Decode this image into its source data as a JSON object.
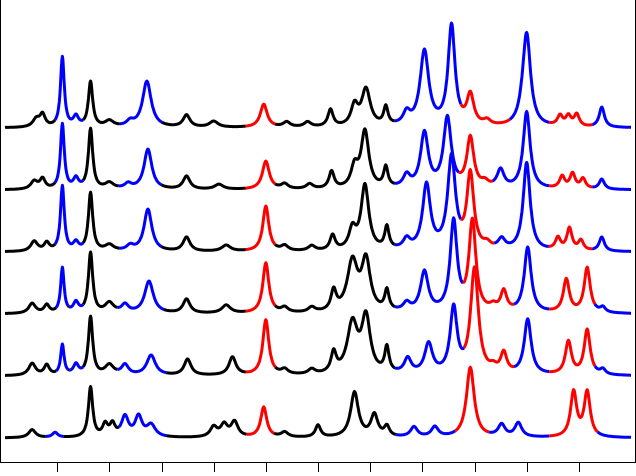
{
  "chart_data": {
    "type": "line",
    "title": "",
    "xlabel": "",
    "ylabel": "",
    "xlim": [
      0,
      600
    ],
    "ylim": [
      0,
      6
    ],
    "grid": false,
    "legend": "none",
    "x_ticks": [
      50,
      100,
      150,
      200,
      250,
      300,
      350,
      400,
      450,
      500,
      550
    ],
    "x_minor_ticks": [],
    "tick_labels_visible": false,
    "colors": {
      "black": "#000000",
      "blue": "#0000ff",
      "red": "#ff0000"
    },
    "segments": [
      {
        "color": "red",
        "x0": 231,
        "x1": 262
      },
      {
        "color": "blue",
        "x0": 374,
        "x1": 432
      },
      {
        "color": "red",
        "x0": 432,
        "x1": 486
      },
      {
        "color": "blue",
        "x0": 486,
        "x1": 522
      },
      {
        "color": "red",
        "x0": 522,
        "x1": 564
      },
      {
        "color": "blue",
        "x0": 564,
        "x1": 600
      }
    ],
    "series": [
      {
        "offset": 5,
        "peaks": [
          [
            30,
            0.08,
            4,
            "black"
          ],
          [
            36,
            0.12,
            3,
            "black"
          ],
          [
            55,
            0.7,
            2.2,
            "blue"
          ],
          [
            68,
            0.1,
            3,
            "blue"
          ],
          [
            82,
            0.45,
            2.5,
            "black"
          ],
          [
            100,
            0.06,
            5,
            "black"
          ],
          [
            120,
            0.05,
            4,
            "blue"
          ],
          [
            136,
            0.46,
            5,
            "blue"
          ],
          [
            174,
            0.12,
            4,
            "black"
          ],
          [
            200,
            0.06,
            5,
            "black"
          ],
          [
            248,
            0.23,
            4,
            "red"
          ],
          [
            270,
            0.05,
            4,
            "black"
          ],
          [
            290,
            0.05,
            4,
            "black"
          ],
          [
            312,
            0.17,
            3,
            "black"
          ],
          [
            335,
            0.2,
            4,
            "black"
          ],
          [
            346,
            0.37,
            5,
            "black"
          ],
          [
            365,
            0.18,
            2.5,
            "black"
          ],
          [
            385,
            0.12,
            4,
            "blue"
          ],
          [
            402,
            0.75,
            5,
            "blue"
          ],
          [
            428,
            1.0,
            4,
            "blue"
          ],
          [
            446,
            0.3,
            4,
            "red"
          ],
          [
            462,
            0.05,
            4,
            "red"
          ],
          [
            496,
            0.05,
            4,
            "blue"
          ],
          [
            500,
            0.92,
            4.5,
            "blue"
          ],
          [
            532,
            0.1,
            3,
            "red"
          ],
          [
            540,
            0.1,
            3,
            "red"
          ],
          [
            548,
            0.12,
            3,
            "red"
          ],
          [
            572,
            0.2,
            3,
            "blue"
          ]
        ]
      },
      {
        "offset": 4,
        "peaks": [
          [
            28,
            0.08,
            4,
            "black"
          ],
          [
            36,
            0.1,
            3,
            "black"
          ],
          [
            55,
            0.65,
            2.2,
            "blue"
          ],
          [
            68,
            0.1,
            3,
            "blue"
          ],
          [
            82,
            0.6,
            2.5,
            "black"
          ],
          [
            100,
            0.06,
            5,
            "black"
          ],
          [
            118,
            0.05,
            4,
            "blue"
          ],
          [
            137,
            0.4,
            4.5,
            "blue"
          ],
          [
            174,
            0.13,
            4,
            "black"
          ],
          [
            205,
            0.05,
            5,
            "black"
          ],
          [
            250,
            0.28,
            4,
            "red"
          ],
          [
            268,
            0.05,
            4,
            "black"
          ],
          [
            292,
            0.05,
            4,
            "black"
          ],
          [
            313,
            0.17,
            3,
            "black"
          ],
          [
            335,
            0.2,
            4,
            "black"
          ],
          [
            345,
            0.57,
            4.5,
            "black"
          ],
          [
            365,
            0.2,
            2.5,
            "black"
          ],
          [
            385,
            0.12,
            4,
            "blue"
          ],
          [
            402,
            0.55,
            4.5,
            "blue"
          ],
          [
            424,
            0.7,
            4.5,
            "blue"
          ],
          [
            446,
            0.5,
            4,
            "red"
          ],
          [
            460,
            0.05,
            4,
            "red"
          ],
          [
            475,
            0.18,
            4,
            "blue"
          ],
          [
            500,
            0.77,
            4,
            "blue"
          ],
          [
            534,
            0.12,
            3,
            "red"
          ],
          [
            544,
            0.15,
            3,
            "red"
          ],
          [
            554,
            0.1,
            3,
            "red"
          ],
          [
            572,
            0.1,
            3,
            "blue"
          ]
        ]
      },
      {
        "offset": 3,
        "peaks": [
          [
            28,
            0.1,
            4,
            "black"
          ],
          [
            40,
            0.08,
            3,
            "black"
          ],
          [
            55,
            0.65,
            2.2,
            "blue"
          ],
          [
            68,
            0.08,
            3,
            "blue"
          ],
          [
            82,
            0.58,
            2.5,
            "black"
          ],
          [
            100,
            0.06,
            5,
            "black"
          ],
          [
            120,
            0.05,
            4,
            "blue"
          ],
          [
            137,
            0.42,
            4.5,
            "blue"
          ],
          [
            174,
            0.14,
            4,
            "black"
          ],
          [
            212,
            0.06,
            5,
            "black"
          ],
          [
            250,
            0.45,
            3.5,
            "red"
          ],
          [
            268,
            0.05,
            4,
            "black"
          ],
          [
            294,
            0.05,
            4,
            "black"
          ],
          [
            314,
            0.15,
            3,
            "black"
          ],
          [
            333,
            0.2,
            4,
            "black"
          ],
          [
            345,
            0.65,
            4.5,
            "black"
          ],
          [
            366,
            0.22,
            2.5,
            "black"
          ],
          [
            385,
            0.1,
            4,
            "blue"
          ],
          [
            404,
            0.65,
            4.5,
            "blue"
          ],
          [
            428,
            0.92,
            4.5,
            "blue"
          ],
          [
            446,
            0.75,
            4,
            "red"
          ],
          [
            462,
            0.05,
            4,
            "red"
          ],
          [
            476,
            0.1,
            4,
            "blue"
          ],
          [
            500,
            0.88,
            4,
            "blue"
          ],
          [
            530,
            0.12,
            3,
            "red"
          ],
          [
            541,
            0.22,
            3,
            "red"
          ],
          [
            552,
            0.1,
            3,
            "red"
          ],
          [
            572,
            0.14,
            3,
            "blue"
          ]
        ]
      },
      {
        "offset": 2,
        "peaks": [
          [
            26,
            0.1,
            4,
            "black"
          ],
          [
            40,
            0.08,
            3,
            "black"
          ],
          [
            55,
            0.45,
            2,
            "blue"
          ],
          [
            68,
            0.1,
            3,
            "blue"
          ],
          [
            82,
            0.6,
            2.5,
            "black"
          ],
          [
            100,
            0.1,
            5,
            "black"
          ],
          [
            115,
            0.08,
            4,
            "blue"
          ],
          [
            138,
            0.32,
            5,
            "blue"
          ],
          [
            174,
            0.14,
            4,
            "black"
          ],
          [
            212,
            0.08,
            5,
            "black"
          ],
          [
            250,
            0.5,
            3.5,
            "red"
          ],
          [
            268,
            0.05,
            4,
            "black"
          ],
          [
            294,
            0.05,
            4,
            "black"
          ],
          [
            315,
            0.2,
            3,
            "black"
          ],
          [
            333,
            0.5,
            6,
            "black"
          ],
          [
            346,
            0.5,
            5,
            "black"
          ],
          [
            366,
            0.2,
            2.5,
            "black"
          ],
          [
            385,
            0.08,
            4,
            "blue"
          ],
          [
            402,
            0.4,
            4.5,
            "blue"
          ],
          [
            430,
            0.9,
            4,
            "blue"
          ],
          [
            448,
            0.9,
            4,
            "red"
          ],
          [
            468,
            0.05,
            4,
            "red"
          ],
          [
            478,
            0.2,
            3.5,
            "red"
          ],
          [
            501,
            0.65,
            4,
            "blue"
          ],
          [
            538,
            0.33,
            3.5,
            "red"
          ],
          [
            558,
            0.45,
            3.5,
            "red"
          ],
          [
            573,
            0.05,
            3,
            "blue"
          ]
        ]
      },
      {
        "offset": 1,
        "peaks": [
          [
            26,
            0.12,
            4,
            "black"
          ],
          [
            40,
            0.1,
            3,
            "black"
          ],
          [
            55,
            0.3,
            2,
            "blue"
          ],
          [
            68,
            0.1,
            3,
            "blue"
          ],
          [
            82,
            0.58,
            2.5,
            "black"
          ],
          [
            100,
            0.1,
            5,
            "black"
          ],
          [
            115,
            0.1,
            4,
            "blue"
          ],
          [
            140,
            0.2,
            5,
            "blue"
          ],
          [
            175,
            0.16,
            4,
            "black"
          ],
          [
            218,
            0.18,
            4,
            "black"
          ],
          [
            250,
            0.55,
            3.5,
            "red"
          ],
          [
            268,
            0.05,
            4,
            "black"
          ],
          [
            294,
            0.05,
            4,
            "black"
          ],
          [
            315,
            0.2,
            3,
            "black"
          ],
          [
            333,
            0.5,
            6,
            "black"
          ],
          [
            346,
            0.55,
            5,
            "black"
          ],
          [
            366,
            0.25,
            2.5,
            "black"
          ],
          [
            386,
            0.15,
            4,
            "blue"
          ],
          [
            406,
            0.3,
            4.5,
            "blue"
          ],
          [
            430,
            0.65,
            4,
            "blue"
          ],
          [
            450,
            1.05,
            4.5,
            "red"
          ],
          [
            468,
            0.05,
            4,
            "red"
          ],
          [
            478,
            0.2,
            3.5,
            "red"
          ],
          [
            501,
            0.55,
            4,
            "blue"
          ],
          [
            540,
            0.33,
            3.5,
            "red"
          ],
          [
            558,
            0.45,
            3.5,
            "red"
          ],
          [
            573,
            0.05,
            3,
            "blue"
          ]
        ]
      },
      {
        "offset": 0,
        "peaks": [
          [
            26,
            0.08,
            4,
            "black"
          ],
          [
            48,
            0.05,
            3,
            "blue"
          ],
          [
            82,
            0.5,
            2.5,
            "black"
          ],
          [
            96,
            0.12,
            3,
            "black"
          ],
          [
            103,
            0.12,
            3,
            "black"
          ],
          [
            115,
            0.2,
            4,
            "blue"
          ],
          [
            128,
            0.2,
            4,
            "blue"
          ],
          [
            140,
            0.12,
            5,
            "blue"
          ],
          [
            200,
            0.1,
            4,
            "black"
          ],
          [
            210,
            0.12,
            4,
            "black"
          ],
          [
            220,
            0.15,
            4,
            "black"
          ],
          [
            248,
            0.3,
            3.5,
            "red"
          ],
          [
            268,
            0.05,
            4,
            "black"
          ],
          [
            300,
            0.12,
            3,
            "black"
          ],
          [
            335,
            0.45,
            4.5,
            "black"
          ],
          [
            354,
            0.22,
            4,
            "black"
          ],
          [
            366,
            0.1,
            3,
            "black"
          ],
          [
            392,
            0.1,
            4,
            "blue"
          ],
          [
            412,
            0.1,
            4,
            "blue"
          ],
          [
            446,
            0.7,
            4.5,
            "red"
          ],
          [
            476,
            0.12,
            4,
            "blue"
          ],
          [
            492,
            0.14,
            4,
            "blue"
          ],
          [
            545,
            0.45,
            3.5,
            "red"
          ],
          [
            558,
            0.45,
            3.5,
            "red"
          ]
        ]
      }
    ]
  }
}
